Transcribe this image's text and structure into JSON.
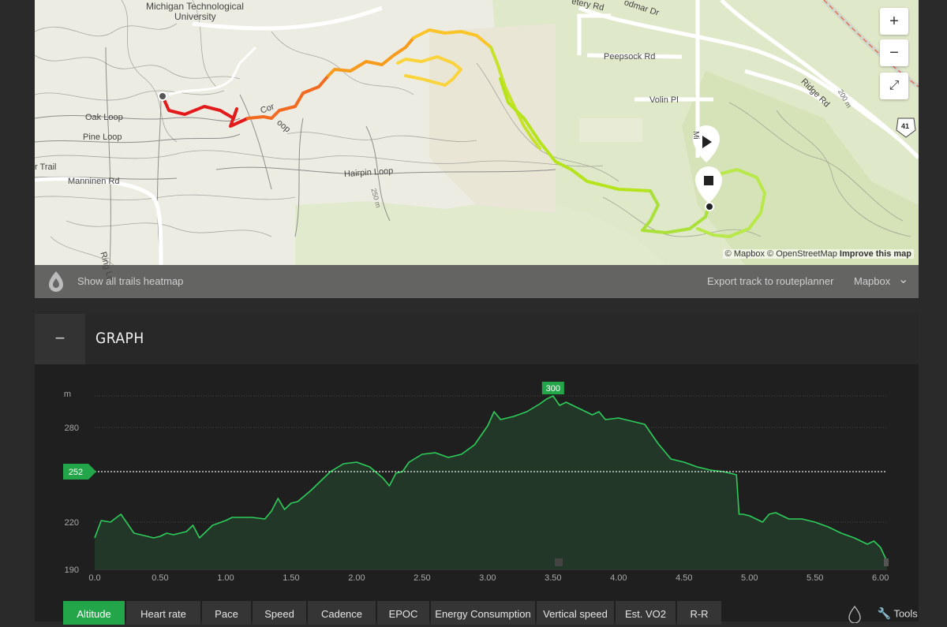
{
  "map": {
    "labels": {
      "university": [
        "Michigan Technological",
        "University"
      ],
      "oak_loop": "Oak Loop",
      "pine_loop": "Pine Loop",
      "trail": "r Trail",
      "manninen": "Manninen Rd",
      "ring": "Ring Lo",
      "cor": "Cor",
      "loop": "oop",
      "hairpin": "Hairpin Loop",
      "elev_250": "250 m",
      "cemetery": "etery Rd",
      "woodmar": "odmar Dr",
      "peepsock": "Peepsock Rd",
      "volin": "Volin Pl",
      "ridge": "Ridge Rd",
      "elev_200": "200 m",
      "highway": "41",
      "mi": "Mi"
    },
    "controls": {
      "zoom_in": "+",
      "zoom_out": "−",
      "fullscreen": "⤢"
    },
    "attribution": {
      "mapbox": "© Mapbox",
      "osm": "© OpenStreetMap",
      "improve": "Improve this map"
    },
    "bar": {
      "heatmap": "Show all trails heatmap",
      "export": "Export track to routeplanner",
      "style": "Mapbox",
      "chevron": "⌄"
    }
  },
  "graph": {
    "title": "GRAPH",
    "collapse": "−",
    "tools": "Tools",
    "tabs": [
      "Altitude",
      "Heart rate",
      "Pace",
      "Speed",
      "Cadence",
      "EPOC",
      "Energy Consumption",
      "Vertical speed",
      "Est. VO2",
      "R-R"
    ],
    "active_tab": "Altitude"
  },
  "chart_data": {
    "type": "area",
    "ylabel": "m",
    "xlabel": "",
    "xlim": [
      0,
      6.05
    ],
    "ylim": [
      190,
      300
    ],
    "x_ticks": [
      "0.0",
      "0.50",
      "1.00",
      "1.50",
      "2.00",
      "2.50",
      "3.00",
      "3.50",
      "4.00",
      "4.50",
      "5.00",
      "5.50",
      "6.00"
    ],
    "y_ticks": [
      "190",
      "220",
      "280"
    ],
    "avg_marker": "252",
    "peak_marker": "300",
    "x": [
      0,
      0.05,
      0.12,
      0.2,
      0.3,
      0.35,
      0.45,
      0.5,
      0.55,
      0.6,
      0.7,
      0.75,
      0.8,
      0.9,
      1.0,
      1.05,
      1.2,
      1.3,
      1.35,
      1.4,
      1.45,
      1.5,
      1.55,
      1.65,
      1.75,
      1.8,
      1.9,
      2.0,
      2.1,
      2.2,
      2.25,
      2.3,
      2.35,
      2.4,
      2.5,
      2.6,
      2.7,
      2.8,
      2.9,
      3.0,
      3.05,
      3.1,
      3.2,
      3.3,
      3.4,
      3.45,
      3.5,
      3.55,
      3.6,
      3.7,
      3.8,
      3.85,
      3.9,
      4.0,
      4.1,
      4.2,
      4.3,
      4.4,
      4.5,
      4.6,
      4.7,
      4.8,
      4.9,
      4.92,
      4.95,
      5.0,
      5.1,
      5.15,
      5.2,
      5.3,
      5.4,
      5.5,
      5.6,
      5.7,
      5.8,
      5.9,
      5.95,
      6.0,
      6.05
    ],
    "y": [
      210,
      221,
      220,
      225,
      213,
      212,
      210,
      211,
      213,
      212,
      214,
      218,
      210,
      218,
      221,
      223,
      223,
      222,
      227,
      235,
      228,
      232,
      233,
      240,
      248,
      252,
      257,
      258,
      255,
      248,
      243,
      251,
      252,
      258,
      263,
      264,
      261,
      263,
      269,
      281,
      290,
      285,
      287,
      290,
      295,
      298,
      300,
      294,
      296,
      292,
      288,
      290,
      285,
      286,
      284,
      282,
      270,
      260,
      258,
      255,
      253,
      252,
      250,
      225,
      225,
      224,
      220,
      225,
      226,
      222,
      222,
      220,
      217,
      213,
      210,
      206,
      208,
      204,
      195
    ]
  }
}
